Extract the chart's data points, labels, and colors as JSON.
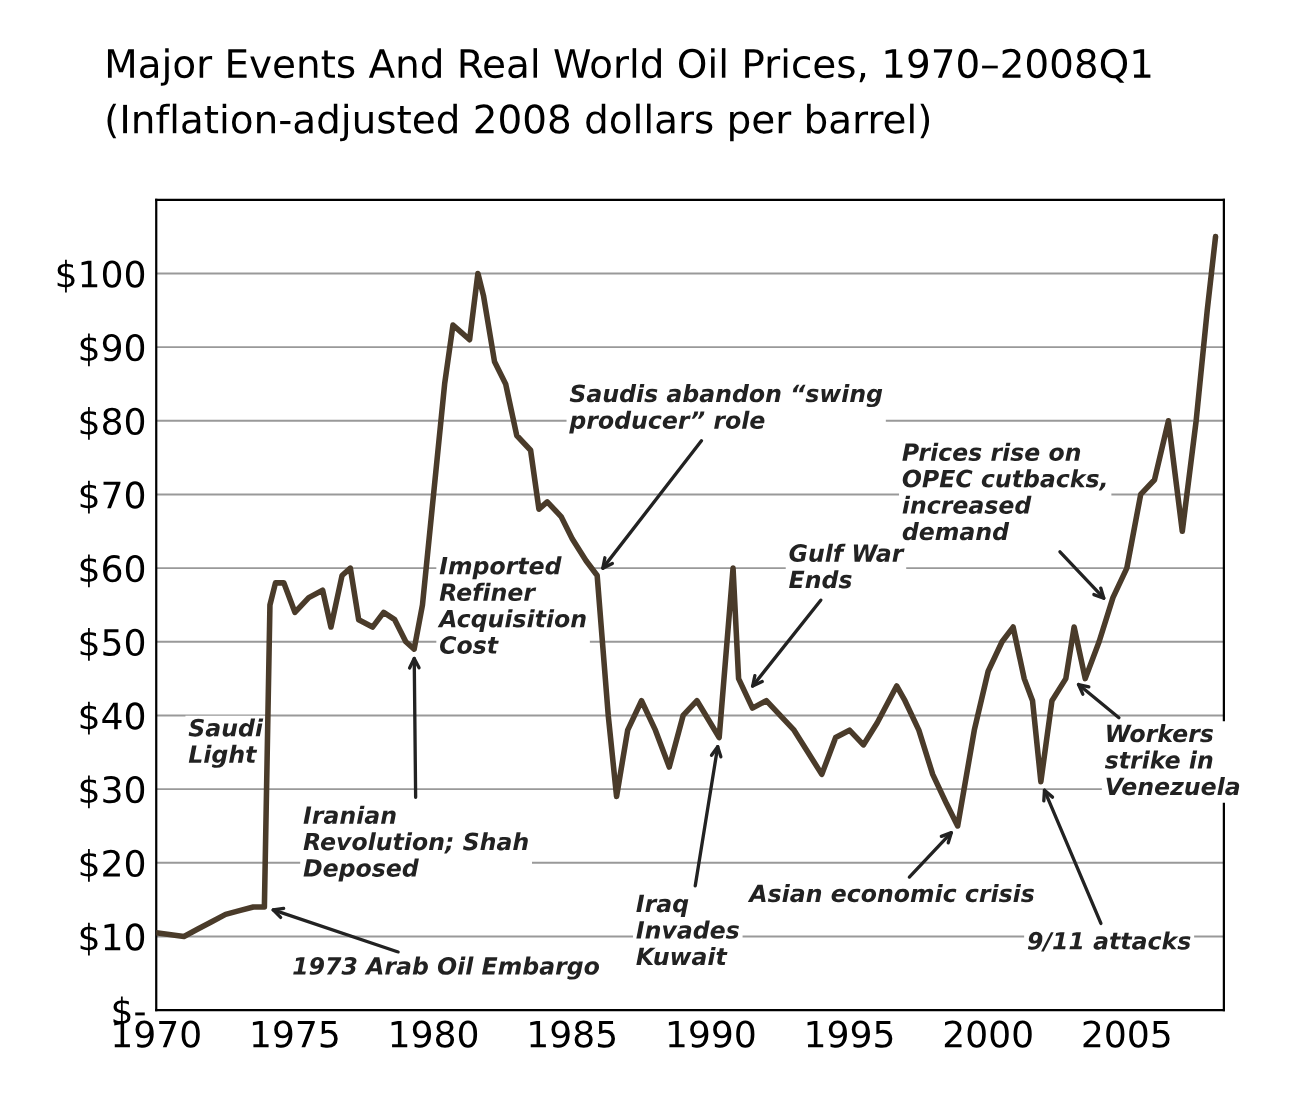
{
  "chart_data": {
    "type": "line",
    "title": "Major Events And Real World Oil Prices, 1970–2008Q1",
    "subtitle": "(Inflation-adjusted 2008 dollars per barrel)",
    "x": [
      1970,
      1971,
      1971.5,
      1972,
      1972.5,
      1973,
      1973.5,
      1973.9,
      1974.1,
      1974.3,
      1974.6,
      1975,
      1975.5,
      1976,
      1976.3,
      1976.7,
      1977,
      1977.3,
      1977.8,
      1978.2,
      1978.6,
      1979,
      1979.3,
      1979.6,
      1980,
      1980.4,
      1980.7,
      1981,
      1981.3,
      1981.6,
      1981.8,
      1982.2,
      1982.6,
      1983,
      1983.5,
      1983.8,
      1984.1,
      1984.6,
      1985,
      1985.5,
      1985.9,
      1986.3,
      1986.6,
      1987,
      1987.5,
      1988,
      1988.5,
      1989,
      1989.5,
      1990.3,
      1990.8,
      1991,
      1991.5,
      1992,
      1992.5,
      1993,
      1993.5,
      1994,
      1994.5,
      1995,
      1995.5,
      1996,
      1996.7,
      1997,
      1997.5,
      1998,
      1998.5,
      1998.9,
      1999.5,
      2000,
      2000.5,
      2000.9,
      2001.3,
      2001.6,
      2001.9,
      2002.3,
      2002.8,
      2003.1,
      2003.5,
      2004,
      2004.5,
      2005,
      2005.5,
      2006,
      2006.5,
      2007,
      2007.5,
      2007.9,
      2008.2
    ],
    "series": [
      {
        "color": "#4a3b2a",
        "values": [
          10.5,
          10,
          11,
          12,
          13,
          13.5,
          14,
          14,
          55,
          58,
          58,
          54,
          56,
          57,
          52,
          59,
          60,
          53,
          52,
          54,
          53,
          50,
          49,
          55,
          70,
          85,
          93,
          92,
          91,
          100,
          97,
          88,
          85,
          78,
          76,
          68,
          69,
          67,
          64,
          61,
          59,
          40,
          29,
          38,
          42,
          38,
          33,
          40,
          42,
          37,
          60,
          45,
          41,
          42,
          40,
          38,
          35,
          32,
          37,
          38,
          36,
          39,
          44,
          42,
          38,
          32,
          28,
          25,
          38,
          46,
          50,
          52,
          45,
          42,
          31,
          42,
          45,
          52,
          45,
          50,
          56,
          60,
          70,
          72,
          80,
          65,
          80,
          95,
          105
        ]
      }
    ],
    "xlim": [
      1970,
      2008.5
    ],
    "ylim": [
      0,
      110
    ],
    "xticks": [
      1970,
      1975,
      1980,
      1985,
      1990,
      1995,
      2000,
      2005
    ],
    "yticks": [
      {
        "value": 0,
        "label": "$-"
      },
      {
        "value": 10,
        "label": "$10"
      },
      {
        "value": 20,
        "label": "$20"
      },
      {
        "value": 30,
        "label": "$30"
      },
      {
        "value": 40,
        "label": "$40"
      },
      {
        "value": 50,
        "label": "$50"
      },
      {
        "value": 60,
        "label": "$60"
      },
      {
        "value": 70,
        "label": "$70"
      },
      {
        "value": 80,
        "label": "$80"
      },
      {
        "value": 90,
        "label": "$90"
      },
      {
        "value": 100,
        "label": "$100"
      }
    ],
    "grid": "y",
    "line_style": "solid",
    "marker": "none",
    "annotations": [
      "Saudi\nLight",
      {
        "text": "1973 Arab Oil Embargo",
        "x": 1973.9,
        "y": 14
      },
      {
        "text": "Iranian\nRevolution; Shah\nDeposed",
        "x": 1979.3,
        "y": 49
      },
      "Imported\nRefiner\nAcquisition\nCost",
      {
        "text": "Saudis abandon “swing\nproducer” role",
        "x": 1985.9,
        "y": 59
      },
      {
        "text": "Iraq\nInvades\nKuwait",
        "x": 1990.3,
        "y": 37
      },
      {
        "text": "Gulf War\nEnds",
        "x": 1991.3,
        "y": 43
      },
      {
        "text": "Asian economic crisis",
        "x": 1998.9,
        "y": 25
      },
      {
        "text": "9/11 attacks",
        "x": 2001.9,
        "y": 31
      },
      {
        "text": "Prices rise on\nOPEC cutbacks,\nincreased\ndemand",
        "x": 2004.4,
        "y": 55
      },
      {
        "text": "Workers\nstrike in\nVenezuela",
        "x": 2003,
        "y": 45
      }
    ]
  }
}
